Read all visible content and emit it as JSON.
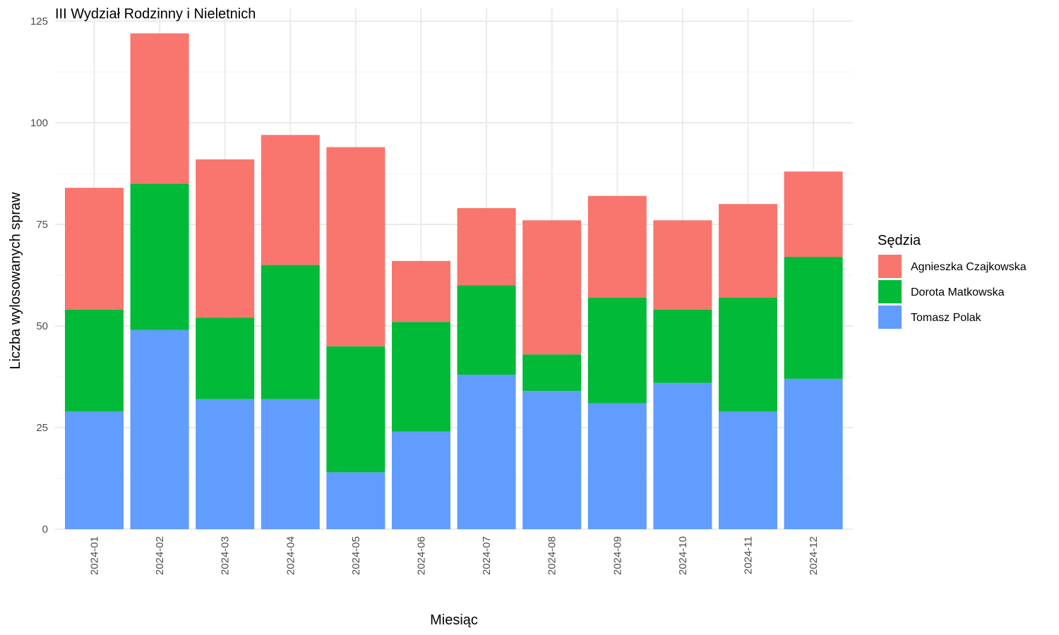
{
  "chart_data": {
    "type": "bar",
    "stacked": true,
    "title": "III Wydział Rodzinny i Nieletnich",
    "xlabel": "Miesiąc",
    "ylabel": "Liczba wylosowanych spraw",
    "ylim": [
      0,
      125
    ],
    "yticks": [
      0,
      25,
      50,
      75,
      100,
      125
    ],
    "grid": true,
    "legend_position": "right",
    "legend_title": "Sędzia",
    "categories": [
      "2024-01",
      "2024-02",
      "2024-03",
      "2024-04",
      "2024-05",
      "2024-06",
      "2024-07",
      "2024-08",
      "2024-09",
      "2024-10",
      "2024-11",
      "2024-12"
    ],
    "series": [
      {
        "name": "Tomasz Polak",
        "color": "#619CFF",
        "values": [
          29,
          49,
          32,
          32,
          14,
          24,
          38,
          34,
          31,
          36,
          29,
          37
        ]
      },
      {
        "name": "Dorota Matkowska",
        "color": "#00BA38",
        "values": [
          25,
          36,
          20,
          33,
          31,
          27,
          22,
          9,
          26,
          18,
          28,
          30
        ]
      },
      {
        "name": "Agnieszka Czajkowska",
        "color": "#F8766D",
        "values": [
          30,
          37,
          39,
          32,
          49,
          15,
          19,
          33,
          25,
          22,
          23,
          21
        ]
      }
    ],
    "legend_order": [
      "Agnieszka Czajkowska",
      "Dorota Matkowska",
      "Tomasz Polak"
    ]
  }
}
